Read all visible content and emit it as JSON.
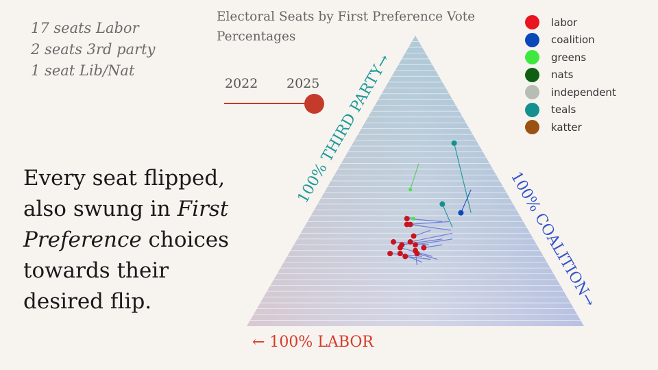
{
  "summary": {
    "lines": [
      "17 seats Labor",
      "2 seats 3rd party",
      "1 seat Lib/Nat"
    ]
  },
  "headline": {
    "part1": "Every seat flipped, also swung in ",
    "italic1": "First Preference",
    "part2": " choices towards their desired flip."
  },
  "slider": {
    "labels": [
      "2022",
      "2025"
    ],
    "selected": "2025",
    "track_color": "#c43a2b"
  },
  "chart_data": {
    "type": "scatter",
    "subtype": "ternary",
    "title": "Electoral Seats by First Preference Vote Percentages",
    "axes": {
      "labor": "← 100% LABOR",
      "third_party": "100% THIRD PARTY→",
      "coalition": "100% COALITION→"
    },
    "axis_colors": {
      "labor": "#d63a2a",
      "third_party": "#1e9a9a",
      "coalition": "#3355cc"
    },
    "grid": true,
    "legend_position": "top-right",
    "legend": [
      {
        "label": "labor",
        "color": "#e8141e"
      },
      {
        "label": "coalition",
        "color": "#0a47b8"
      },
      {
        "label": "greens",
        "color": "#3fe83f"
      },
      {
        "label": "nats",
        "color": "#0e5f12"
      },
      {
        "label": "independent",
        "color": "#b6bdb4"
      },
      {
        "label": "teals",
        "color": "#13918f"
      },
      {
        "label": "katter",
        "color": "#9a5212"
      }
    ],
    "seats": [
      {
        "party": "teals",
        "third_party": 0.63,
        "coalition": 0.3,
        "prev_third_party": 0.39,
        "prev_coalition": 0.47
      },
      {
        "party": "teals",
        "third_party": 0.42,
        "coalition": 0.37,
        "prev_third_party": 0.34,
        "prev_coalition": 0.44
      },
      {
        "party": "coalition",
        "third_party": 0.39,
        "coalition": 0.44,
        "prev_third_party": 0.47,
        "prev_coalition": 0.43
      },
      {
        "party": "labor",
        "third_party": 0.37,
        "coalition": 0.29,
        "prev_third_party": 0.36,
        "prev_coalition": 0.4
      },
      {
        "party": "labor",
        "third_party": 0.35,
        "coalition": 0.3,
        "prev_third_party": 0.36,
        "prev_coalition": 0.42
      },
      {
        "party": "labor",
        "third_party": 0.35,
        "coalition": 0.31,
        "prev_third_party": 0.33,
        "prev_coalition": 0.44
      },
      {
        "party": "labor",
        "third_party": 0.31,
        "coalition": 0.34,
        "prev_third_party": 0.33,
        "prev_coalition": 0.38
      },
      {
        "party": "labor",
        "third_party": 0.29,
        "coalition": 0.29,
        "prev_third_party": 0.28,
        "prev_coalition": 0.4
      },
      {
        "party": "labor",
        "third_party": 0.28,
        "coalition": 0.32,
        "prev_third_party": 0.3,
        "prev_coalition": 0.43
      },
      {
        "party": "labor",
        "third_party": 0.29,
        "coalition": 0.34,
        "prev_third_party": 0.32,
        "prev_coalition": 0.45
      },
      {
        "party": "labor",
        "third_party": 0.28,
        "coalition": 0.36,
        "prev_third_party": 0.3,
        "prev_coalition": 0.46
      },
      {
        "party": "labor",
        "third_party": 0.27,
        "coalition": 0.32,
        "prev_third_party": 0.24,
        "prev_coalition": 0.43
      },
      {
        "party": "labor",
        "third_party": 0.25,
        "coalition": 0.3,
        "prev_third_party": 0.24,
        "prev_coalition": 0.4
      },
      {
        "party": "labor",
        "third_party": 0.25,
        "coalition": 0.33,
        "prev_third_party": 0.22,
        "prev_coalition": 0.41
      },
      {
        "party": "labor",
        "third_party": 0.24,
        "coalition": 0.35,
        "prev_third_party": 0.23,
        "prev_coalition": 0.43
      },
      {
        "party": "labor",
        "third_party": 0.26,
        "coalition": 0.37,
        "prev_third_party": 0.21,
        "prev_coalition": 0.4
      },
      {
        "party": "labor",
        "third_party": 0.25,
        "coalition": 0.38,
        "prev_third_party": 0.23,
        "prev_coalition": 0.45
      },
      {
        "party": "labor",
        "third_party": 0.27,
        "coalition": 0.39,
        "prev_third_party": 0.28,
        "prev_coalition": 0.44
      },
      {
        "party": "greens",
        "third_party": 0.47,
        "coalition": 0.25,
        "prev_third_party": 0.56,
        "prev_coalition": 0.23
      },
      {
        "party": "greens",
        "third_party": 0.37,
        "coalition": 0.31,
        "prev_third_party": 0.38,
        "prev_coalition": 0.28
      }
    ]
  }
}
